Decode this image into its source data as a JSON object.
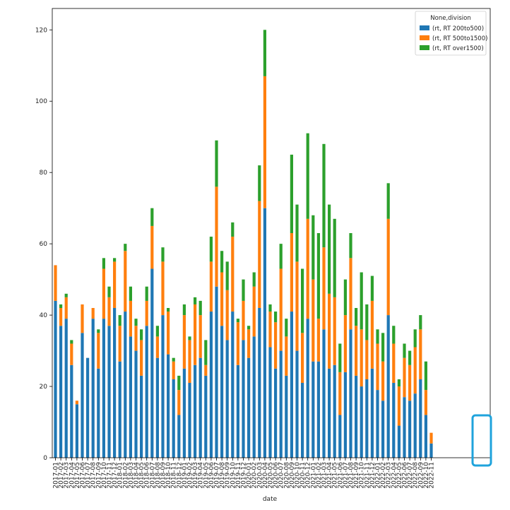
{
  "chart_data": {
    "type": "bar",
    "stacked": true,
    "xlabel": "date",
    "ylabel": "",
    "ylim": [
      0,
      126
    ],
    "yticks": [
      0,
      20,
      40,
      60,
      80,
      100,
      120
    ],
    "grid": false,
    "legend": {
      "title": "None,division",
      "placement": "top-right",
      "entries": [
        "(rt, RT 200to500)",
        "(rt, RT 500to1500)",
        "(rt, RT over1500)"
      ]
    },
    "categories": [
      "2017-01",
      "2017-02",
      "2017-03",
      "2017-04",
      "2017-05",
      "2017-06",
      "2017-07",
      "2017-08",
      "2017-09",
      "2017-10",
      "2017-11",
      "2017-12",
      "2018-01",
      "2018-02",
      "2018-03",
      "2018-04",
      "2018-05",
      "2018-06",
      "2018-07",
      "2018-08",
      "2018-09",
      "2018-10",
      "2018-11",
      "2018-12",
      "2019-01",
      "2019-02",
      "2019-03",
      "2019-04",
      "2019-05",
      "2019-06",
      "2019-07",
      "2019-08",
      "2019-09",
      "2019-10",
      "2019-11",
      "2019-12",
      "2020-01",
      "2020-02",
      "2020-03",
      "2020-04",
      "2020-05",
      "2020-06",
      "2020-07",
      "2020-08",
      "2020-09",
      "2020-10",
      "2020-11",
      "2020-12",
      "2021-01",
      "2021-02",
      "2021-03",
      "2021-04",
      "2021-05",
      "2021-06",
      "2021-07",
      "2021-08",
      "2021-09",
      "2021-10",
      "2021-11",
      "2021-12",
      "2022-01",
      "2022-02",
      "2022-03",
      "2022-04",
      "2022-05",
      "2022-06",
      "2022-07",
      "2022-08",
      "2022-09",
      "2022-10",
      "2022-11"
    ],
    "series": [
      {
        "name": "(rt, RT 200to500)",
        "color": "#1f77b4",
        "values": [
          44,
          37,
          39,
          26,
          15,
          35,
          28,
          39,
          25,
          39,
          37,
          42,
          27,
          41,
          34,
          30,
          23,
          37,
          53,
          28,
          40,
          29,
          22,
          12,
          25,
          21,
          26,
          28,
          23,
          41,
          48,
          37,
          33,
          41,
          26,
          33,
          28,
          34,
          42,
          70,
          31,
          25,
          30,
          23,
          41,
          30,
          21,
          39,
          27,
          27,
          36,
          25,
          26,
          12,
          24,
          36,
          23,
          20,
          22,
          25,
          19,
          16,
          40,
          21,
          9,
          17,
          16,
          18,
          22,
          12,
          4
        ]
      },
      {
        "name": "(rt, RT 500to1500)",
        "color": "#ff7f0e",
        "values": [
          10,
          5,
          6,
          6,
          1,
          8,
          0,
          3,
          10,
          14,
          8,
          13,
          10,
          17,
          10,
          7,
          10,
          7,
          12,
          6,
          15,
          12,
          5,
          7,
          15,
          12,
          17,
          12,
          3,
          14,
          28,
          15,
          14,
          21,
          12,
          11,
          8,
          14,
          30,
          37,
          10,
          13,
          23,
          11,
          22,
          25,
          14,
          28,
          23,
          12,
          23,
          21,
          19,
          12,
          16,
          20,
          14,
          16,
          11,
          19,
          13,
          11,
          27,
          11,
          11,
          11,
          10,
          13,
          14,
          7,
          3
        ]
      },
      {
        "name": "(rt, RT over1500)",
        "color": "#2ca02c",
        "values": [
          0,
          1,
          1,
          1,
          0,
          0,
          0,
          0,
          1,
          3,
          3,
          1,
          3,
          2,
          4,
          2,
          3,
          4,
          5,
          3,
          4,
          1,
          1,
          4,
          3,
          1,
          2,
          4,
          7,
          7,
          13,
          6,
          8,
          4,
          1,
          6,
          1,
          4,
          10,
          13,
          2,
          3,
          7,
          5,
          22,
          16,
          18,
          24,
          18,
          24,
          29,
          25,
          22,
          8,
          10,
          7,
          5,
          16,
          10,
          7,
          4,
          8,
          10,
          5,
          2,
          4,
          4,
          5,
          4,
          8,
          0
        ]
      }
    ]
  }
}
